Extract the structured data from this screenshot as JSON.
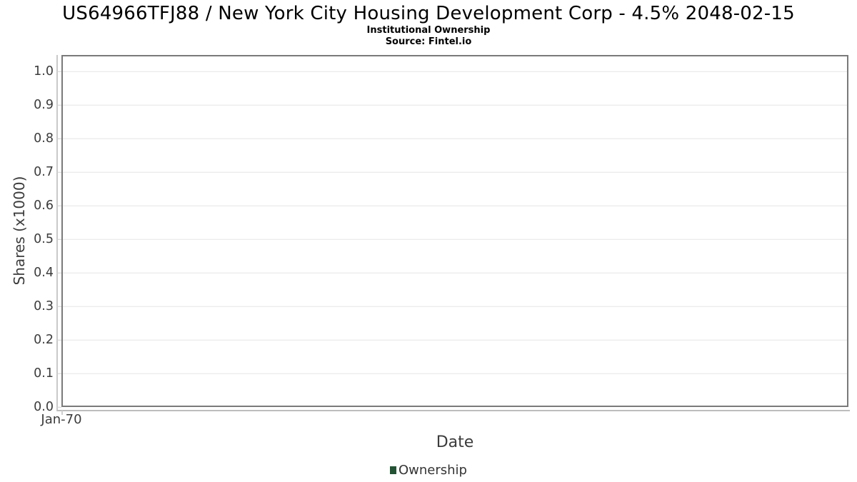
{
  "figure": {
    "title": "US64966TFJ88 / New York City Housing Development Corp - 4.5% 2048-02-15",
    "subtitle": "Institutional Ownership",
    "source": "Source: Fintel.io"
  },
  "chart_data": {
    "type": "line",
    "title": "US64966TFJ88 / New York City Housing Development Corp - 4.5% 2048-02-15",
    "subtitle": "Institutional Ownership",
    "source": "Source: Fintel.io",
    "xlabel": "Date",
    "ylabel": "Shares (x1000)",
    "ylim": [
      0,
      1.05
    ],
    "y_ticks": [
      0.0,
      0.1,
      0.2,
      0.3,
      0.4,
      0.5,
      0.6,
      0.7,
      0.8,
      0.9,
      1.0
    ],
    "y_tick_decimals": 1,
    "x_ticks": [
      {
        "label": "Jan-70",
        "position": 0
      }
    ],
    "grid": "horizontal",
    "legend_position": "bottom-center",
    "series": [
      {
        "name": "Ownership",
        "color": "#235334",
        "x": [],
        "values": []
      }
    ],
    "colors": {
      "series_green": "#235334",
      "gridline": "#e6e6e6",
      "plot_border": "#7a7a7a",
      "axis_line": "#c9c9c9",
      "tick_text": "#3c3c3c"
    }
  }
}
